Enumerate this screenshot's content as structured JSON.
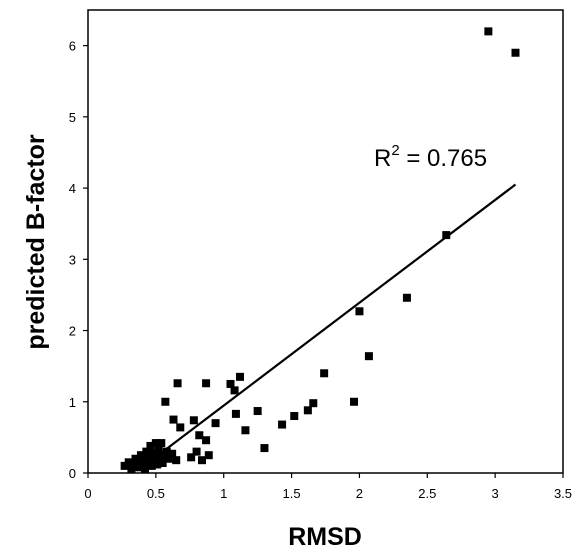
{
  "chart_data": {
    "type": "scatter",
    "title": "",
    "xlabel": "RMSD",
    "ylabel": "predicted B-factor",
    "xlim": [
      0,
      3.5
    ],
    "ylim": [
      0,
      6.5
    ],
    "x_ticks": [
      "0",
      "0.5",
      "1",
      "1.5",
      "2",
      "2.5",
      "3",
      "3.5"
    ],
    "y_ticks": [
      "0",
      "1",
      "2",
      "3",
      "4",
      "5",
      "6"
    ],
    "x_tick_values": [
      0,
      0.5,
      1,
      1.5,
      2,
      2.5,
      3,
      3.5
    ],
    "y_tick_values": [
      0,
      1,
      2,
      3,
      4,
      5,
      6
    ],
    "grid": false,
    "marker": "square",
    "marker_color": "#000000",
    "line_color": "#000000",
    "annotation": {
      "text_prefix": "R",
      "superscript": "2",
      "text_suffix": " = 0.765"
    },
    "trendline": {
      "x": [
        0.4,
        3.15
      ],
      "y": [
        0.08,
        4.05
      ]
    },
    "points": [
      {
        "x": 0.27,
        "y": 0.1
      },
      {
        "x": 0.3,
        "y": 0.15
      },
      {
        "x": 0.32,
        "y": 0.06
      },
      {
        "x": 0.34,
        "y": 0.12
      },
      {
        "x": 0.35,
        "y": 0.2
      },
      {
        "x": 0.37,
        "y": 0.08
      },
      {
        "x": 0.38,
        "y": 0.16
      },
      {
        "x": 0.39,
        "y": 0.25
      },
      {
        "x": 0.4,
        "y": 0.1
      },
      {
        "x": 0.41,
        "y": 0.2
      },
      {
        "x": 0.42,
        "y": 0.05
      },
      {
        "x": 0.43,
        "y": 0.3
      },
      {
        "x": 0.44,
        "y": 0.14
      },
      {
        "x": 0.45,
        "y": 0.22
      },
      {
        "x": 0.46,
        "y": 0.38
      },
      {
        "x": 0.47,
        "y": 0.1
      },
      {
        "x": 0.48,
        "y": 0.28
      },
      {
        "x": 0.49,
        "y": 0.18
      },
      {
        "x": 0.5,
        "y": 0.42
      },
      {
        "x": 0.51,
        "y": 0.12
      },
      {
        "x": 0.52,
        "y": 0.32
      },
      {
        "x": 0.53,
        "y": 0.22
      },
      {
        "x": 0.54,
        "y": 0.42
      },
      {
        "x": 0.55,
        "y": 0.14
      },
      {
        "x": 0.56,
        "y": 0.25
      },
      {
        "x": 0.57,
        "y": 1.0
      },
      {
        "x": 0.58,
        "y": 0.3
      },
      {
        "x": 0.6,
        "y": 0.2
      },
      {
        "x": 0.62,
        "y": 0.27
      },
      {
        "x": 0.63,
        "y": 0.75
      },
      {
        "x": 0.66,
        "y": 1.26
      },
      {
        "x": 0.68,
        "y": 0.64
      },
      {
        "x": 0.65,
        "y": 0.18
      },
      {
        "x": 0.76,
        "y": 0.22
      },
      {
        "x": 0.78,
        "y": 0.74
      },
      {
        "x": 0.8,
        "y": 0.3
      },
      {
        "x": 0.82,
        "y": 0.53
      },
      {
        "x": 0.84,
        "y": 0.18
      },
      {
        "x": 0.87,
        "y": 1.26
      },
      {
        "x": 0.87,
        "y": 0.46
      },
      {
        "x": 0.89,
        "y": 0.25
      },
      {
        "x": 0.94,
        "y": 0.7
      },
      {
        "x": 1.05,
        "y": 1.25
      },
      {
        "x": 1.08,
        "y": 1.16
      },
      {
        "x": 1.09,
        "y": 0.83
      },
      {
        "x": 1.12,
        "y": 1.35
      },
      {
        "x": 1.16,
        "y": 0.6
      },
      {
        "x": 1.25,
        "y": 0.87
      },
      {
        "x": 1.3,
        "y": 0.35
      },
      {
        "x": 1.43,
        "y": 0.68
      },
      {
        "x": 1.52,
        "y": 0.8
      },
      {
        "x": 1.62,
        "y": 0.88
      },
      {
        "x": 1.66,
        "y": 0.98
      },
      {
        "x": 1.74,
        "y": 1.4
      },
      {
        "x": 1.96,
        "y": 1.0
      },
      {
        "x": 2.0,
        "y": 2.27
      },
      {
        "x": 2.07,
        "y": 1.64
      },
      {
        "x": 2.35,
        "y": 2.46
      },
      {
        "x": 2.64,
        "y": 3.34
      },
      {
        "x": 2.95,
        "y": 6.2
      },
      {
        "x": 3.15,
        "y": 5.9
      }
    ]
  }
}
